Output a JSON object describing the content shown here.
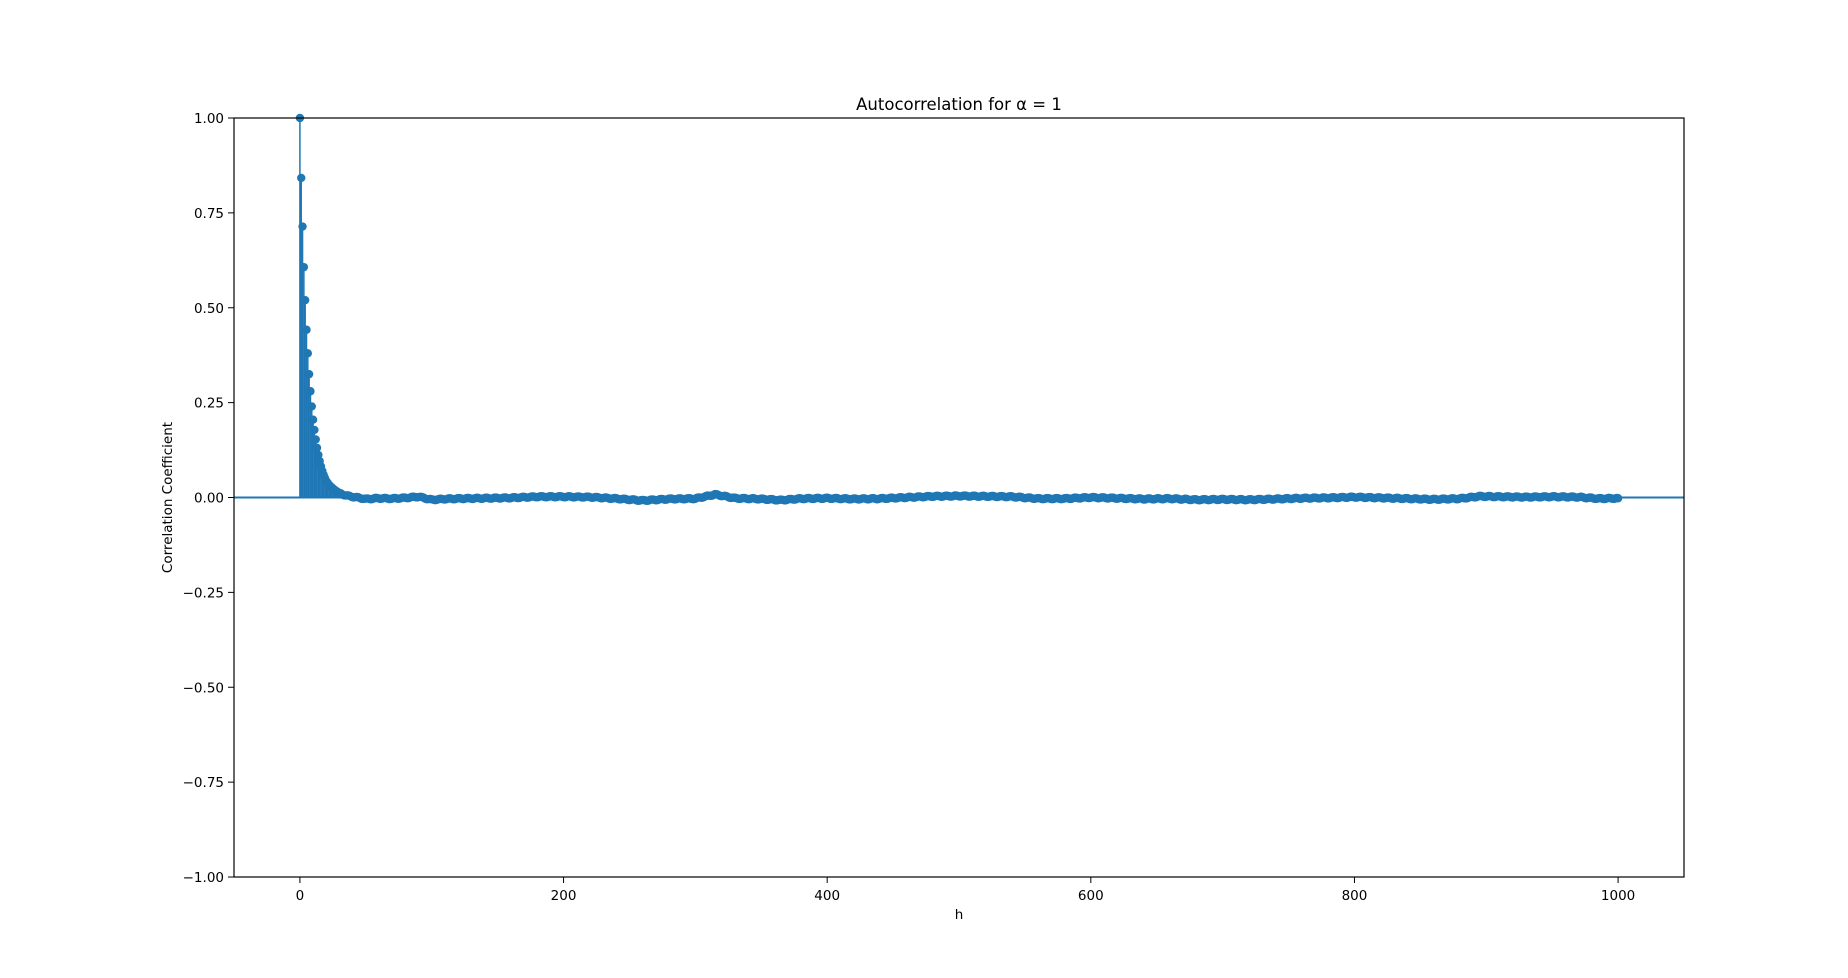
{
  "chart_data": {
    "type": "stem",
    "title": "Autocorrelation for α = 1",
    "xlabel": "h",
    "ylabel": "Correlation Coefficient",
    "xlim": [
      -50,
      1050
    ],
    "ylim": [
      -1.0,
      1.0
    ],
    "x_ticks": [
      "0",
      "200",
      "400",
      "600",
      "800",
      "1000"
    ],
    "x_tick_values": [
      0,
      200,
      400,
      600,
      800,
      1000
    ],
    "y_ticks": [
      "1.00",
      "0.75",
      "0.50",
      "0.25",
      "0.00",
      "−0.25",
      "−0.50",
      "−0.75",
      "−1.00"
    ],
    "y_tick_values": [
      1.0,
      0.75,
      0.5,
      0.25,
      0.0,
      -0.25,
      -0.5,
      -0.75,
      -1.0
    ],
    "grid": false,
    "baseline": 0.0,
    "color": "#1f77b4",
    "series": [
      {
        "x": [
          0,
          1,
          2,
          3,
          4,
          5,
          6,
          7,
          8,
          9,
          10,
          11,
          12,
          13,
          14,
          15,
          16,
          17,
          18,
          19,
          20,
          22,
          24,
          26,
          28,
          30,
          35,
          40,
          50,
          60,
          70,
          80,
          90,
          100,
          110,
          120,
          140,
          160,
          180,
          200,
          220,
          240,
          260,
          280,
          300,
          315,
          330,
          350,
          365,
          380,
          400,
          420,
          440,
          460,
          480,
          500,
          520,
          540,
          560,
          580,
          600,
          620,
          640,
          660,
          680,
          700,
          720,
          740,
          760,
          780,
          800,
          820,
          840,
          860,
          880,
          895,
          910,
          930,
          950,
          970,
          985,
          1000
        ],
        "y": [
          1.0,
          0.842,
          0.714,
          0.607,
          0.52,
          0.442,
          0.38,
          0.325,
          0.28,
          0.24,
          0.205,
          0.178,
          0.153,
          0.131,
          0.112,
          0.096,
          0.082,
          0.07,
          0.06,
          0.051,
          0.044,
          0.034,
          0.027,
          0.021,
          0.016,
          0.012,
          0.005,
          0.002,
          -0.004,
          -0.002,
          -0.003,
          -0.001,
          0.002,
          -0.006,
          -0.004,
          -0.003,
          -0.002,
          -0.001,
          0.002,
          0.002,
          0.001,
          -0.003,
          -0.008,
          -0.004,
          -0.003,
          0.008,
          -0.002,
          -0.004,
          -0.007,
          -0.003,
          -0.002,
          -0.004,
          -0.003,
          0.0,
          0.003,
          0.004,
          0.003,
          0.002,
          -0.003,
          -0.003,
          0.0,
          -0.002,
          -0.004,
          -0.003,
          -0.006,
          -0.005,
          -0.006,
          -0.004,
          -0.002,
          -0.001,
          0.001,
          -0.001,
          -0.003,
          -0.005,
          -0.003,
          0.003,
          0.002,
          0.001,
          0.002,
          0.001,
          -0.003,
          -0.002
        ]
      }
    ]
  }
}
